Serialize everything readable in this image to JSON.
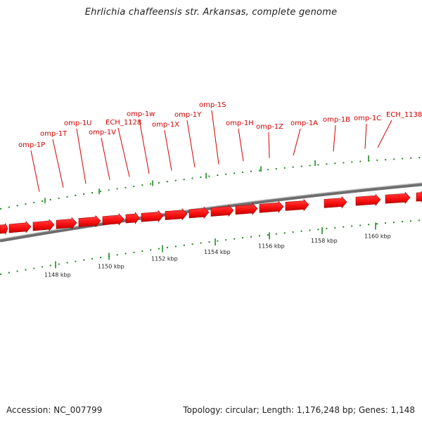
{
  "title": "Ehrlichia chaffeensis str. Arkansas, complete genome",
  "footer": {
    "accession": "Accession: NC_007799",
    "summary": "Topology: circular; Length: 1,176,248 bp; Genes: 1,148"
  },
  "colors": {
    "gene": "#ff1a1a",
    "gene_shade": "#b00000",
    "label": "#d00000",
    "backbone": "#8a8a8a",
    "ticks": "#1f8a1f"
  },
  "genes": [
    {
      "label": "omp-1P"
    },
    {
      "label": "omp-1T"
    },
    {
      "label": "omp-1U"
    },
    {
      "label": "omp-1V"
    },
    {
      "label": "ECH_1128"
    },
    {
      "label": "omp-1w"
    },
    {
      "label": "omp-1X"
    },
    {
      "label": "omp-1Y"
    },
    {
      "label": "omp-1S"
    },
    {
      "label": "omp-1H"
    },
    {
      "label": "omp-1Z"
    },
    {
      "label": "omp-1A"
    },
    {
      "label": "omp-1B"
    },
    {
      "label": "omp-1C"
    },
    {
      "label": "ECH_1138"
    }
  ],
  "scale_labels": [
    "1148 kbp",
    "1150 kbp",
    "1152 kbp",
    "1154 kbp",
    "1156 kbp",
    "1158 kbp",
    "1160 kbp"
  ]
}
